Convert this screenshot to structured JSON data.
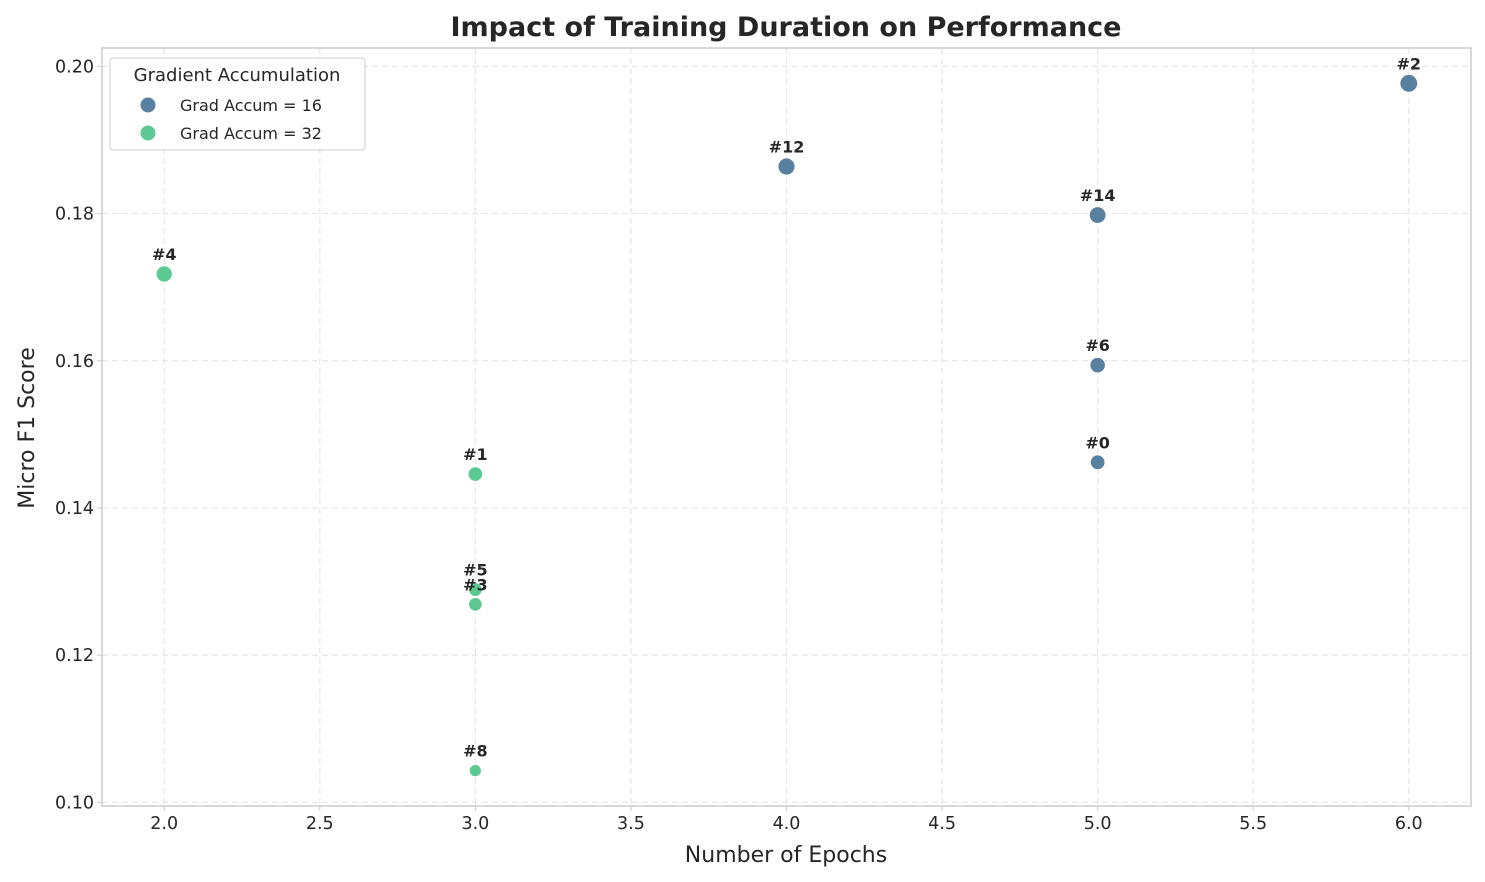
{
  "chart_data": {
    "type": "scatter",
    "title": "Impact of Training Duration on Performance",
    "xlabel": "Number of Epochs",
    "ylabel": "Micro F1 Score",
    "xlim": [
      1.8,
      6.2
    ],
    "ylim": [
      0.0995,
      0.2025
    ],
    "xticks": [
      "2.0",
      "2.5",
      "3.0",
      "3.5",
      "4.0",
      "4.5",
      "5.0",
      "5.5",
      "6.0"
    ],
    "yticks": [
      "0.10",
      "0.12",
      "0.14",
      "0.16",
      "0.18",
      "0.20"
    ],
    "grid": true,
    "legend": {
      "title": "Gradient Accumulation",
      "placement": "top-left"
    },
    "series": [
      {
        "name": "Grad Accum = 16",
        "color": "#3b6a91",
        "points": [
          {
            "label": "#2",
            "x": 6,
            "y": 0.1977
          },
          {
            "label": "#12",
            "x": 4,
            "y": 0.1864
          },
          {
            "label": "#14",
            "x": 5,
            "y": 0.1798
          },
          {
            "label": "#6",
            "x": 5,
            "y": 0.1594
          },
          {
            "label": "#0",
            "x": 5,
            "y": 0.1462
          }
        ]
      },
      {
        "name": "Grad Accum = 32",
        "color": "#3fbf80",
        "points": [
          {
            "label": "#4",
            "x": 2,
            "y": 0.1718
          },
          {
            "label": "#1",
            "x": 3,
            "y": 0.1446
          },
          {
            "label": "#5",
            "x": 3,
            "y": 0.1289
          },
          {
            "label": "#3",
            "x": 3,
            "y": 0.1269
          },
          {
            "label": "#8",
            "x": 3,
            "y": 0.1043
          }
        ]
      }
    ]
  }
}
